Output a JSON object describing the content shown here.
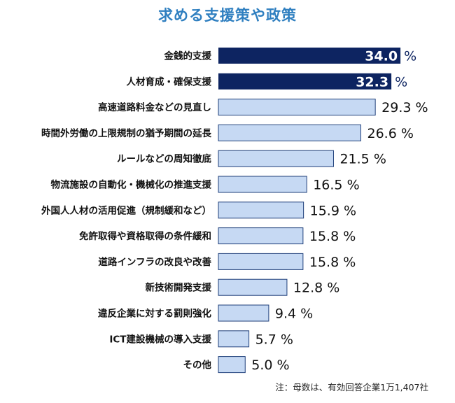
{
  "title": "求める支援策や政策",
  "note": "注：母数は、有効回答企業1万1,407社",
  "colors": {
    "title": "#2f7fc0",
    "bar_highlight": "#0d2461",
    "bar_normal": "#c6d9f3",
    "bar_border": "#1f3f7a",
    "label_text": "#111111",
    "value_text_highlight": "#ffffff",
    "value_text_normal": "#111111",
    "unit_highlight": "#0d2461"
  },
  "chart_data": {
    "type": "bar",
    "orientation": "horizontal",
    "unit": "%",
    "categories": [
      "金銭的支援",
      "人材育成・確保支援",
      "高速道路料金などの見直し",
      "時間外労働の上限規制の猶予期間の延長",
      "ルールなどの周知徹底",
      "物流施設の自動化・機械化の推進支援",
      "外国人人材の活用促進（規制緩和など）",
      "免許取得や資格取得の条件緩和",
      "道路インフラの改良や改善",
      "新技術開発支援",
      "違反企業に対する罰則強化",
      "ICT建設機械の導入支援",
      "その他"
    ],
    "values": [
      34.0,
      32.3,
      29.3,
      26.6,
      21.5,
      16.5,
      15.9,
      15.8,
      15.8,
      12.8,
      9.4,
      5.7,
      5.0
    ],
    "value_labels": [
      "34.0",
      "32.3",
      "29.3",
      "26.6",
      "21.5",
      "16.5",
      "15.9",
      "15.8",
      "15.8",
      "12.8",
      "9.4",
      "5.7",
      "5.0"
    ],
    "highlighted": [
      true,
      true,
      false,
      false,
      false,
      false,
      false,
      false,
      false,
      false,
      false,
      false,
      false
    ]
  }
}
